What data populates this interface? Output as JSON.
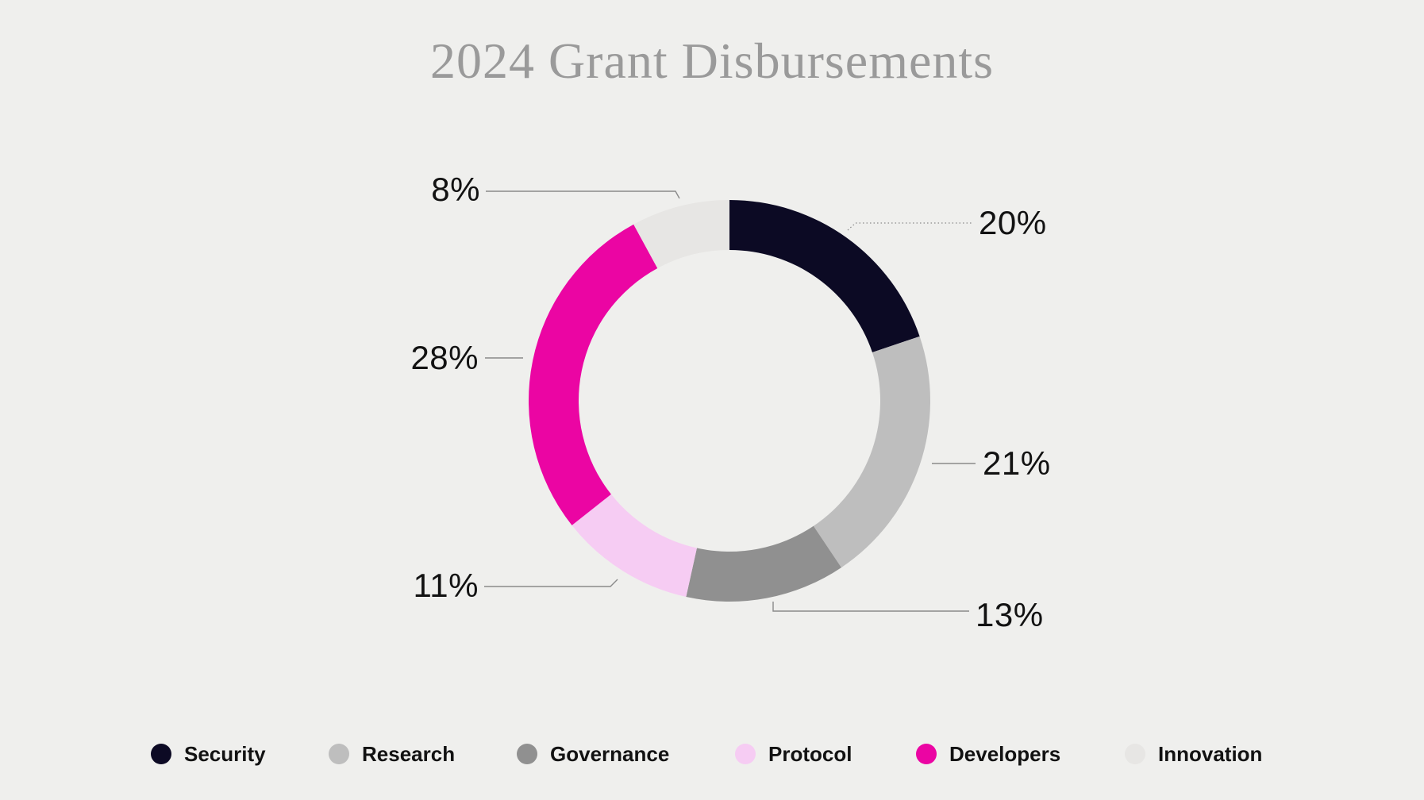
{
  "page": {
    "background": "#EFEFED"
  },
  "header": {
    "title": "2024 Grant Disbursements",
    "title_color": "#9A9A9A"
  },
  "chart_data": {
    "type": "pie",
    "subtype": "donut",
    "title": "2024 Grant Disbursements",
    "legend_position": "bottom",
    "label_color": "#121212",
    "leader_line_color": "#8A8A8A",
    "categories": [
      "Security",
      "Research",
      "Governance",
      "Protocol",
      "Developers",
      "Innovation"
    ],
    "values": [
      20,
      21,
      13,
      11,
      28,
      8
    ],
    "segments": [
      {
        "label": "Security",
        "value": 20,
        "pct_label": "20%",
        "color": "#0C0A24"
      },
      {
        "label": "Research",
        "value": 21,
        "pct_label": "21%",
        "color": "#BEBEBE"
      },
      {
        "label": "Governance",
        "value": 13,
        "pct_label": "13%",
        "color": "#909090"
      },
      {
        "label": "Protocol",
        "value": 11,
        "pct_label": "11%",
        "color": "#F6CCF3"
      },
      {
        "label": "Developers",
        "value": 28,
        "pct_label": "28%",
        "color": "#EB05A3"
      },
      {
        "label": "Innovation",
        "value": 8,
        "pct_label": "8%",
        "color": "#E7E6E4"
      }
    ]
  }
}
